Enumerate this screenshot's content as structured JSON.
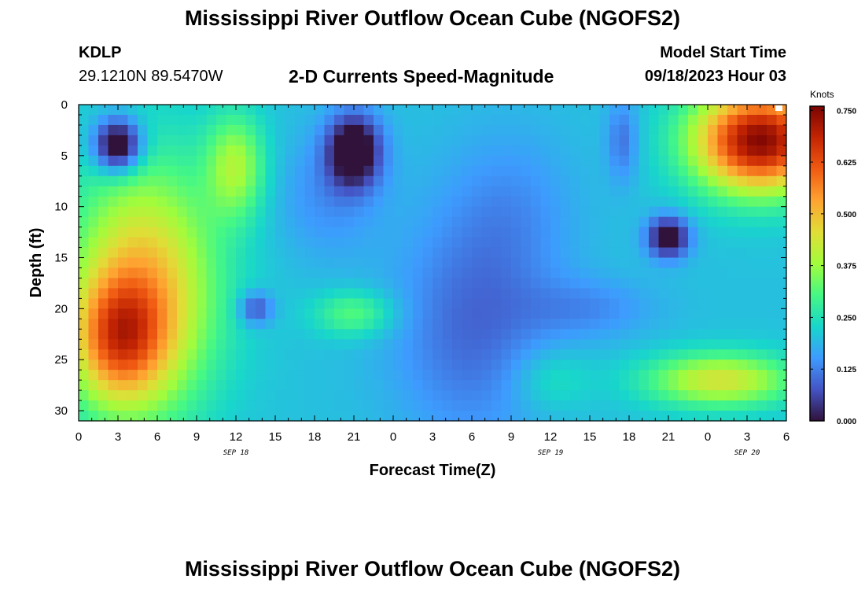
{
  "header": {
    "title": "Mississippi River Outflow Ocean Cube (NGOFS2)",
    "station": "KDLP",
    "coords": "29.1210N  89.5470W",
    "subtitle": "2-D Currents Speed-Magnitude",
    "start_label": "Model Start Time",
    "start_value": "09/18/2023 Hour 03"
  },
  "footer": {
    "title": "Mississippi River Outflow Ocean Cube (NGOFS2)"
  },
  "colors": {
    "colormap": [
      "#30123b",
      "#4454c4",
      "#3e9bfe",
      "#18d6cb",
      "#46f884",
      "#a2fc3c",
      "#e1dd37",
      "#fea331",
      "#f05b12",
      "#c42503",
      "#7a0403"
    ]
  },
  "chart_data": {
    "type": "heatmap",
    "xlabel": "Forecast Time(Z)",
    "ylabel": "Depth (ft)",
    "x_tick_labels": [
      "0",
      "3",
      "6",
      "9",
      "12",
      "15",
      "18",
      "21",
      "0",
      "3",
      "6",
      "9",
      "12",
      "15",
      "18",
      "21",
      "0",
      "3",
      "6"
    ],
    "date_labels": [
      {
        "text": "SEP 18",
        "hours": 12
      },
      {
        "text": "SEP 19",
        "hours": 36
      },
      {
        "text": "SEP 20",
        "hours": 51
      }
    ],
    "xlim": [
      0,
      54
    ],
    "ylim": [
      0,
      31
    ],
    "y_ticks": [
      0,
      5,
      10,
      15,
      20,
      25,
      30
    ],
    "y_inverted": true,
    "colorbar": {
      "label": "Knots",
      "range": [
        0,
        0.76
      ],
      "tick_labels": [
        "0.000",
        "0.125",
        "0.250",
        "0.375",
        "0.500",
        "0.625",
        "0.750"
      ]
    },
    "grid": "off",
    "field": {
      "background": 0.2,
      "blobs": [
        {
          "t": 5,
          "d": 18,
          "st": 5.5,
          "sd": 12,
          "v": 0.3
        },
        {
          "t": 3,
          "d": 23,
          "st": 3.5,
          "sd": 6,
          "v": 0.28
        },
        {
          "t": 3,
          "d": 4,
          "st": 1.8,
          "sd": 2.6,
          "v": -0.3
        },
        {
          "t": 12,
          "d": 6,
          "st": 2.2,
          "sd": 5,
          "v": 0.18
        },
        {
          "t": 13.5,
          "d": 20,
          "st": 1.3,
          "sd": 1.6,
          "v": -0.14
        },
        {
          "t": 21,
          "d": 20.5,
          "st": 3,
          "sd": 2.2,
          "v": 0.12
        },
        {
          "t": 21,
          "d": 4.5,
          "st": 2,
          "sd": 3.5,
          "v": -0.27
        },
        {
          "t": 19,
          "d": 9,
          "st": 4,
          "sd": 6,
          "v": -0.06
        },
        {
          "t": 30,
          "d": 22,
          "st": 6,
          "sd": 11,
          "v": -0.1
        },
        {
          "t": 33,
          "d": 10,
          "st": 5,
          "sd": 8,
          "v": -0.05
        },
        {
          "t": 39,
          "d": 20,
          "st": 5,
          "sd": 3,
          "v": -0.06
        },
        {
          "t": 41.5,
          "d": 3.5,
          "st": 1.2,
          "sd": 4,
          "v": -0.09
        },
        {
          "t": 45,
          "d": 13,
          "st": 1.6,
          "sd": 2,
          "v": -0.24
        },
        {
          "t": 52,
          "d": 3.5,
          "st": 5,
          "sd": 5,
          "v": 0.55
        },
        {
          "t": 49,
          "d": 27,
          "st": 5.5,
          "sd": 2.6,
          "v": 0.24
        },
        {
          "t": 36,
          "d": 27,
          "st": 3,
          "sd": 3,
          "v": 0.06
        }
      ]
    }
  }
}
